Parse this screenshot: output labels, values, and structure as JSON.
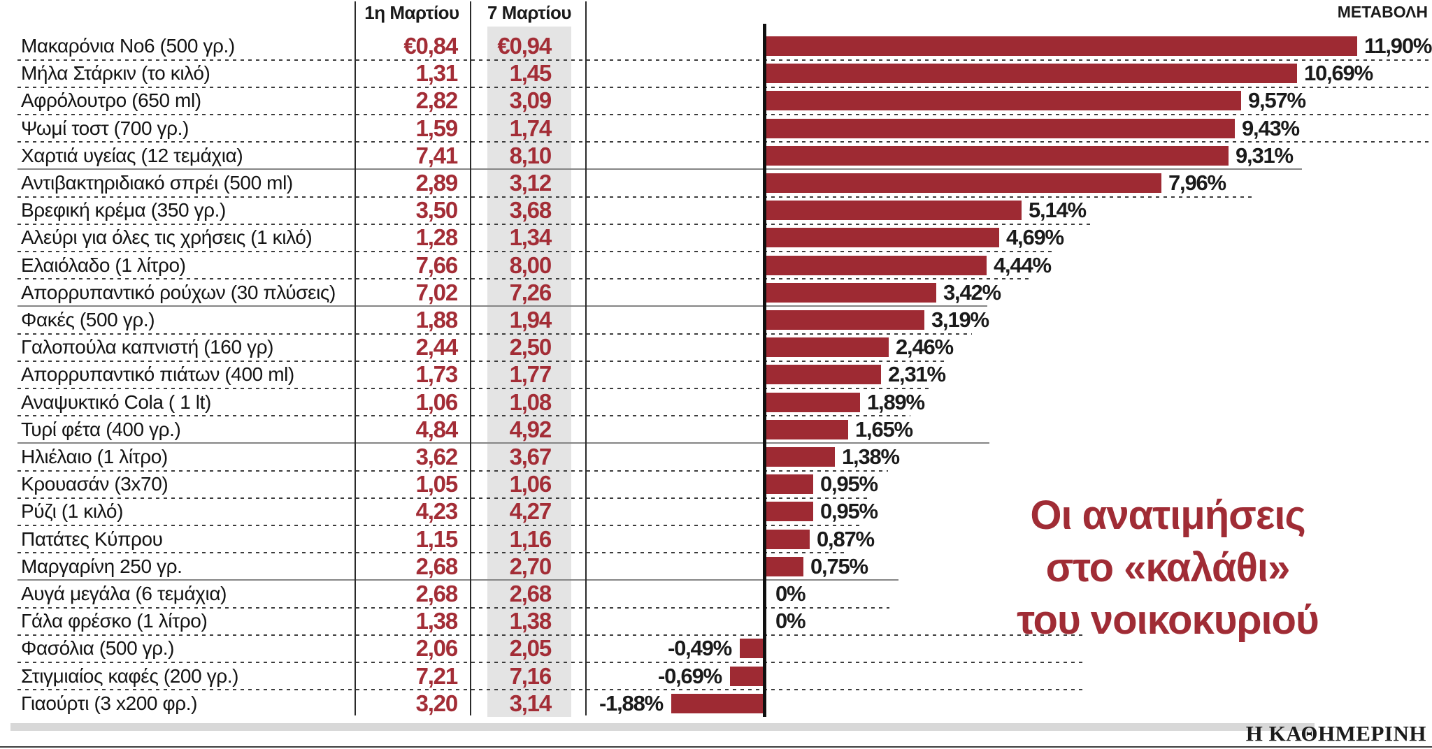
{
  "header": {
    "col_mar1": "1η Μαρτίου",
    "col_mar7": "7 Μαρτίου",
    "change_label": "ΜΕΤΑΒΟΛΗ"
  },
  "title": {
    "line1": "Οι ανατιμήσεις",
    "line2": "στο «καλάθι»",
    "line3": "του νοικοκυριού"
  },
  "footer": {
    "brand": "Η ΚΑΘΗΜΕΡΙΝΗ"
  },
  "colors": {
    "bar": "#9e2a33",
    "price_text": "#a32d36",
    "title_text": "#a02c35",
    "highlight_band": "#e4e4e4"
  },
  "chart_data": {
    "type": "bar",
    "orientation": "horizontal",
    "title": "Οι ανατιμήσεις στο «καλάθι» του νοικοκυριού",
    "value_axis_label": "ΜΕΤΑΒΟΛΗ",
    "columns": [
      "1η Μαρτίου",
      "7 Μαρτίου",
      "ΜΕΤΑΒΟΛΗ"
    ],
    "xlim": [
      -2,
      12
    ],
    "grid": false,
    "legend": "none",
    "rows": [
      {
        "product": "Μακαρόνια Νο6 (500 γρ.)",
        "price_mar1": "€0,84",
        "price_mar7": "€0,94",
        "change_pct": 11.9,
        "change_label": "11,90%"
      },
      {
        "product": "Μήλα Στάρκιν (το κιλό)",
        "price_mar1": "1,31",
        "price_mar7": "1,45",
        "change_pct": 10.69,
        "change_label": "10,69%"
      },
      {
        "product": "Αφρόλουτρο (650 ml)",
        "price_mar1": "2,82",
        "price_mar7": "3,09",
        "change_pct": 9.57,
        "change_label": "9,57%"
      },
      {
        "product": "Ψωμί τοστ (700 γρ.)",
        "price_mar1": "1,59",
        "price_mar7": "1,74",
        "change_pct": 9.43,
        "change_label": "9,43%"
      },
      {
        "product": "Χαρτιά υγείας (12 τεμάχια)",
        "price_mar1": "7,41",
        "price_mar7": "8,10",
        "change_pct": 9.31,
        "change_label": "9,31%"
      },
      {
        "product": "Αντιβακτηριδιακό σπρέι (500 ml)",
        "price_mar1": "2,89",
        "price_mar7": "3,12",
        "change_pct": 7.96,
        "change_label": "7,96%"
      },
      {
        "product": "Βρεφική κρέμα (350 γρ.)",
        "price_mar1": "3,50",
        "price_mar7": "3,68",
        "change_pct": 5.14,
        "change_label": "5,14%"
      },
      {
        "product": "Αλεύρι για όλες τις χρήσεις (1 κιλό)",
        "price_mar1": "1,28",
        "price_mar7": "1,34",
        "change_pct": 4.69,
        "change_label": "4,69%"
      },
      {
        "product": "Ελαιόλαδο (1 λίτρο)",
        "price_mar1": "7,66",
        "price_mar7": "8,00",
        "change_pct": 4.44,
        "change_label": "4,44%"
      },
      {
        "product": "Απορρυπαντικό ρούχων (30 πλύσεις)",
        "price_mar1": "7,02",
        "price_mar7": "7,26",
        "change_pct": 3.42,
        "change_label": "3,42%"
      },
      {
        "product": "Φακές (500 γρ.)",
        "price_mar1": "1,88",
        "price_mar7": "1,94",
        "change_pct": 3.19,
        "change_label": "3,19%"
      },
      {
        "product": "Γαλοπούλα καπνιστή (160 γρ)",
        "price_mar1": "2,44",
        "price_mar7": "2,50",
        "change_pct": 2.46,
        "change_label": "2,46%"
      },
      {
        "product": "Απορρυπαντικό πιάτων (400 ml)",
        "price_mar1": "1,73",
        "price_mar7": "1,77",
        "change_pct": 2.31,
        "change_label": "2,31%"
      },
      {
        "product": "Αναψυκτικό Cola ( 1 lt)",
        "price_mar1": "1,06",
        "price_mar7": "1,08",
        "change_pct": 1.89,
        "change_label": "1,89%"
      },
      {
        "product": "Τυρί φέτα (400 γρ.)",
        "price_mar1": "4,84",
        "price_mar7": "4,92",
        "change_pct": 1.65,
        "change_label": "1,65%"
      },
      {
        "product": "Ηλιέλαιο (1 λίτρο)",
        "price_mar1": "3,62",
        "price_mar7": "3,67",
        "change_pct": 1.38,
        "change_label": "1,38%"
      },
      {
        "product": "Κρουασάν (3x70)",
        "price_mar1": "1,05",
        "price_mar7": "1,06",
        "change_pct": 0.95,
        "change_label": "0,95%"
      },
      {
        "product": "Ρύζι (1 κιλό)",
        "price_mar1": "4,23",
        "price_mar7": "4,27",
        "change_pct": 0.95,
        "change_label": "0,95%"
      },
      {
        "product": "Πατάτες Κύπρου",
        "price_mar1": "1,15",
        "price_mar7": "1,16",
        "change_pct": 0.87,
        "change_label": "0,87%"
      },
      {
        "product": "Μαργαρίνη 250 γρ.",
        "price_mar1": "2,68",
        "price_mar7": "2,70",
        "change_pct": 0.75,
        "change_label": "0,75%"
      },
      {
        "product": "Αυγά μεγάλα (6 τεμάχια)",
        "price_mar1": "2,68",
        "price_mar7": "2,68",
        "change_pct": 0,
        "change_label": "0%"
      },
      {
        "product": "Γάλα φρέσκο (1 λίτρο)",
        "price_mar1": "1,38",
        "price_mar7": "1,38",
        "change_pct": 0,
        "change_label": "0%"
      },
      {
        "product": "Φασόλια (500 γρ.)",
        "price_mar1": "2,06",
        "price_mar7": "2,05",
        "change_pct": -0.49,
        "change_label": "-0,49%"
      },
      {
        "product": "Στιγμιαίος καφές (200 γρ.)",
        "price_mar1": "7,21",
        "price_mar7": "7,16",
        "change_pct": -0.69,
        "change_label": "-0,69%"
      },
      {
        "product": "Γιαούρτι (3 x200 φρ.)",
        "price_mar1": "3,20",
        "price_mar7": "3,14",
        "change_pct": -1.88,
        "change_label": "-1,88%"
      }
    ]
  }
}
